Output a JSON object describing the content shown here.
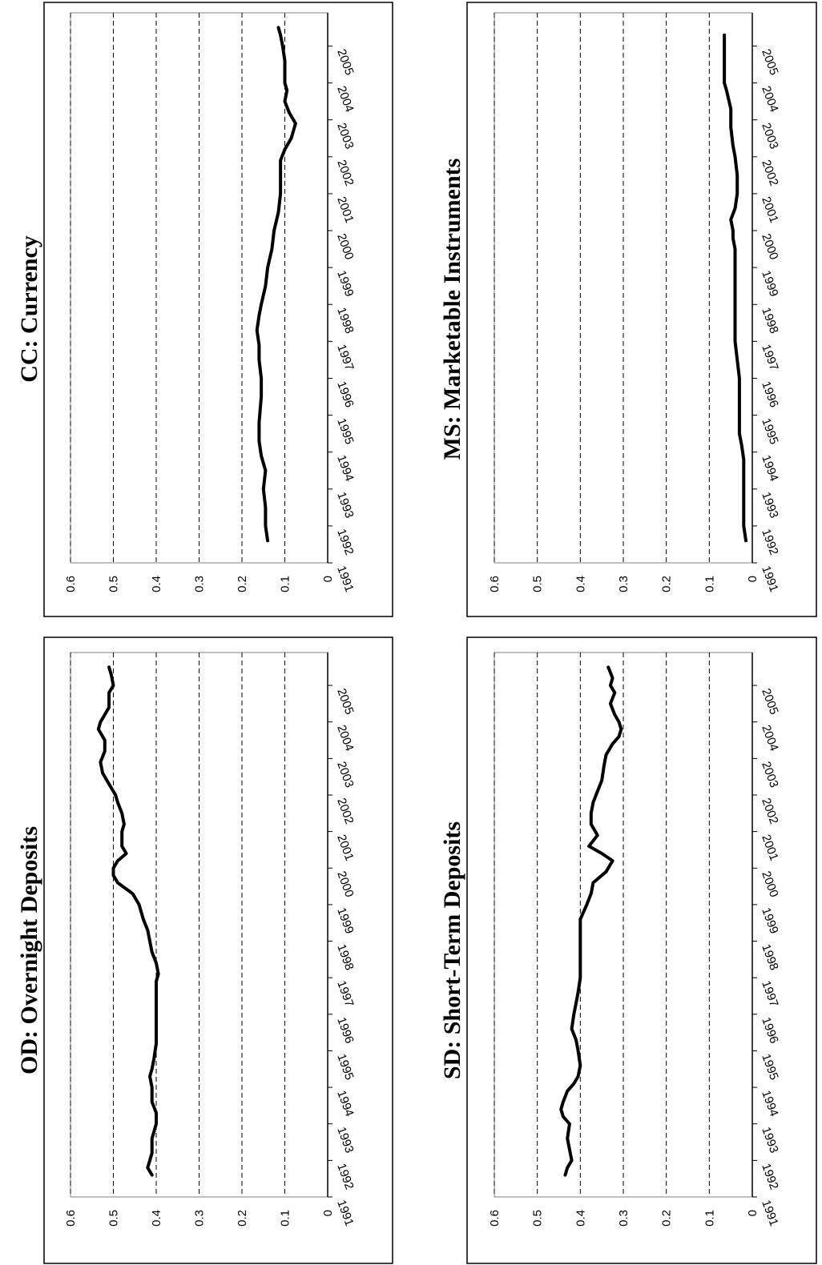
{
  "charts": [
    {
      "id": "cc",
      "title": "CC: Currency",
      "type": "line",
      "x_ticks": [
        "1991",
        "1992",
        "1993",
        "1994",
        "1995",
        "1996",
        "1997",
        "1998",
        "1999",
        "2000",
        "2001",
        "2002",
        "2003",
        "2004",
        "2005"
      ],
      "y_ticks": [
        "0",
        "0.1",
        "0.2",
        "0.3",
        "0.4",
        "0.5",
        "0.6"
      ],
      "xlim": [
        1991,
        2005.9
      ],
      "ylim": [
        0,
        0.6
      ],
      "grid": "horizontal-dashed",
      "series": [
        {
          "x": [
            1991.6,
            1992.0,
            1992.5,
            1993.0,
            1993.5,
            1993.9,
            1994.3,
            1994.8,
            1995.5,
            1996.0,
            1996.5,
            1996.9,
            1997.3,
            1997.7,
            1998.0,
            1998.5,
            1999.0,
            1999.5,
            2000.0,
            2000.5,
            2001.0,
            2001.5,
            2001.9,
            2002.2,
            2002.5,
            2002.7,
            2002.9,
            2003.2,
            2003.5,
            2003.8,
            2004.0,
            2004.3,
            2004.6,
            2005.0,
            2005.3,
            2005.5
          ],
          "y": [
            0.14,
            0.145,
            0.145,
            0.15,
            0.145,
            0.155,
            0.16,
            0.16,
            0.155,
            0.155,
            0.16,
            0.16,
            0.165,
            0.16,
            0.155,
            0.145,
            0.14,
            0.13,
            0.125,
            0.115,
            0.11,
            0.11,
            0.11,
            0.1,
            0.085,
            0.08,
            0.075,
            0.09,
            0.1,
            0.095,
            0.1,
            0.1,
            0.1,
            0.105,
            0.11,
            0.115
          ]
        }
      ]
    },
    {
      "id": "ms",
      "title": "MS: Marketable Instruments",
      "type": "line",
      "x_ticks": [
        "1991",
        "1992",
        "1993",
        "1994",
        "1995",
        "1996",
        "1997",
        "1998",
        "1999",
        "2000",
        "2001",
        "2002",
        "2003",
        "2004",
        "2005"
      ],
      "y_ticks": [
        "0",
        "0.1",
        "0.2",
        "0.3",
        "0.4",
        "0.5",
        "0.6"
      ],
      "xlim": [
        1991,
        2005.9
      ],
      "ylim": [
        0,
        0.6
      ],
      "grid": "horizontal-dashed",
      "series": [
        {
          "x": [
            1991.6,
            1992.0,
            1992.5,
            1993.0,
            1993.5,
            1993.8,
            1994.2,
            1994.5,
            1995.0,
            1995.5,
            1996.0,
            1996.5,
            1997.0,
            1997.5,
            1998.0,
            1999.0,
            1999.5,
            1999.8,
            2000.0,
            2000.3,
            2000.6,
            2001.0,
            2001.5,
            2002.0,
            2002.3,
            2002.8,
            2003.3,
            2003.8,
            2004.0,
            2004.3,
            2004.8,
            2005.3
          ],
          "y": [
            0.015,
            0.02,
            0.02,
            0.02,
            0.02,
            0.02,
            0.025,
            0.03,
            0.03,
            0.03,
            0.03,
            0.035,
            0.04,
            0.04,
            0.04,
            0.04,
            0.04,
            0.045,
            0.045,
            0.05,
            0.04,
            0.035,
            0.035,
            0.04,
            0.045,
            0.05,
            0.05,
            0.06,
            0.065,
            0.065,
            0.065,
            0.065
          ]
        }
      ]
    },
    {
      "id": "od",
      "title": "OD: Overnight Deposits",
      "type": "line",
      "x_ticks": [
        "1991",
        "1992",
        "1993",
        "1994",
        "1995",
        "1996",
        "1997",
        "1998",
        "1999",
        "2000",
        "2001",
        "2002",
        "2003",
        "2004",
        "2005"
      ],
      "y_ticks": [
        "0",
        "0.1",
        "0.2",
        "0.3",
        "0.4",
        "0.5",
        "0.6"
      ],
      "xlim": [
        1991,
        2005.9
      ],
      "ylim": [
        0,
        0.6
      ],
      "grid": "horizontal-dashed",
      "series": [
        {
          "x": [
            1991.6,
            1991.8,
            1992.2,
            1992.6,
            1993.0,
            1993.3,
            1993.6,
            1994.0,
            1994.3,
            1994.5,
            1994.8,
            1995.2,
            1995.6,
            1996.0,
            1996.5,
            1996.9,
            1997.1,
            1997.4,
            1997.7,
            1998.0,
            1998.3,
            1998.6,
            1999.0,
            1999.3,
            1999.6,
            1999.8,
            2000.0,
            2000.2,
            2000.4,
            2000.6,
            2000.8,
            2001.0,
            2001.2,
            2001.5,
            2001.8,
            2002.0,
            2002.3,
            2002.6,
            2002.9,
            2003.2,
            2003.5,
            2003.8,
            2004.0,
            2004.2,
            2004.4,
            2004.6,
            2004.8,
            2005.0,
            2005.3,
            2005.5
          ],
          "y": [
            0.41,
            0.42,
            0.41,
            0.41,
            0.4,
            0.4,
            0.41,
            0.41,
            0.415,
            0.41,
            0.405,
            0.4,
            0.4,
            0.4,
            0.4,
            0.4,
            0.395,
            0.4,
            0.41,
            0.415,
            0.42,
            0.43,
            0.44,
            0.455,
            0.49,
            0.5,
            0.5,
            0.49,
            0.47,
            0.48,
            0.48,
            0.48,
            0.475,
            0.48,
            0.49,
            0.495,
            0.51,
            0.525,
            0.53,
            0.52,
            0.52,
            0.535,
            0.53,
            0.52,
            0.51,
            0.51,
            0.51,
            0.5,
            0.505,
            0.51
          ]
        }
      ]
    },
    {
      "id": "sd",
      "title": "SD: Short-Term Deposits",
      "type": "line",
      "x_ticks": [
        "1991",
        "1992",
        "1993",
        "1994",
        "1995",
        "1996",
        "1997",
        "1998",
        "1999",
        "2000",
        "2001",
        "2002",
        "2003",
        "2004",
        "2005"
      ],
      "y_ticks": [
        "0",
        "0.1",
        "0.2",
        "0.3",
        "0.4",
        "0.5",
        "0.6"
      ],
      "xlim": [
        1991,
        2005.9
      ],
      "ylim": [
        0,
        0.6
      ],
      "grid": "horizontal-dashed",
      "series": [
        {
          "x": [
            1991.6,
            1991.8,
            1992.0,
            1992.3,
            1992.6,
            1993.0,
            1993.2,
            1993.4,
            1993.6,
            1993.9,
            1994.1,
            1994.3,
            1994.6,
            1995.0,
            1995.3,
            1995.6,
            1996.0,
            1996.3,
            1996.6,
            1997.0,
            1997.3,
            1997.6,
            1998.0,
            1998.3,
            1998.6,
            1999.0,
            1999.3,
            1999.6,
            1999.9,
            2000.2,
            2000.4,
            2000.6,
            2000.9,
            2001.2,
            2001.5,
            2001.8,
            2002.1,
            2002.4,
            2002.8,
            2003.1,
            2003.4,
            2003.6,
            2003.8,
            2004.0,
            2004.2,
            2004.5,
            2004.8,
            2005.0,
            2005.2,
            2005.5
          ],
          "y": [
            0.435,
            0.43,
            0.42,
            0.425,
            0.43,
            0.425,
            0.44,
            0.445,
            0.44,
            0.43,
            0.415,
            0.405,
            0.4,
            0.405,
            0.41,
            0.42,
            0.415,
            0.41,
            0.405,
            0.4,
            0.4,
            0.4,
            0.4,
            0.4,
            0.4,
            0.385,
            0.375,
            0.37,
            0.34,
            0.325,
            0.35,
            0.38,
            0.36,
            0.375,
            0.375,
            0.37,
            0.36,
            0.35,
            0.345,
            0.34,
            0.325,
            0.31,
            0.305,
            0.31,
            0.32,
            0.33,
            0.32,
            0.33,
            0.325,
            0.335
          ]
        }
      ]
    }
  ]
}
